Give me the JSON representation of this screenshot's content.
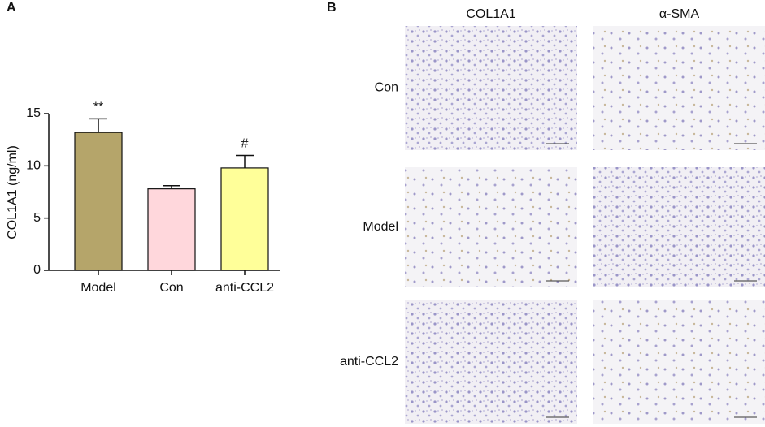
{
  "chart_data": {
    "type": "bar",
    "panel_label": "A",
    "ylabel": "COL1A1 (ng/ml)",
    "categories": [
      "Model",
      "Con",
      "anti-CCL2"
    ],
    "values": [
      13.2,
      7.8,
      9.8
    ],
    "errors": [
      1.3,
      0.3,
      1.2
    ],
    "colors": [
      "#b5a56a",
      "#ffd7dc",
      "#ffff99"
    ],
    "annotations": [
      "**",
      null,
      "#"
    ],
    "ylim": [
      0,
      15
    ],
    "yticks": [
      0,
      5,
      10,
      15
    ]
  },
  "panel_b": {
    "label": "B",
    "columns": [
      "COL1A1",
      "α-SMA"
    ],
    "rows": [
      "Con",
      "Model",
      "anti-CCL2"
    ]
  }
}
